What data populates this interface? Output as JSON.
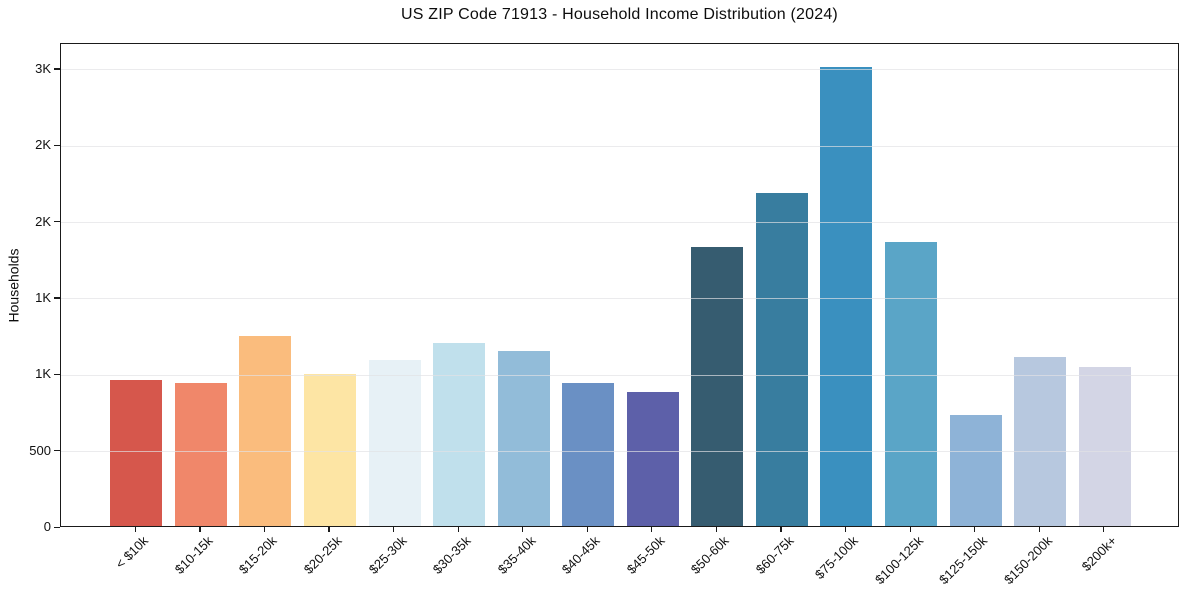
{
  "chart_data": {
    "type": "bar",
    "title": "US ZIP Code 71913 - Household Income Distribution (2024)",
    "xlabel": "",
    "ylabel": "Households",
    "categories": [
      "< $10k",
      "$10-15k",
      "$15-20k",
      "$20-25k",
      "$25-30k",
      "$30-35k",
      "$35-40k",
      "$40-45k",
      "$45-50k",
      "$50-60k",
      "$60-75k",
      "$75-100k",
      "$100-125k",
      "$125-150k",
      "$150-200k",
      "$200k+"
    ],
    "values": [
      955,
      935,
      1245,
      995,
      1085,
      1200,
      1145,
      935,
      875,
      1825,
      2180,
      3005,
      1860,
      730,
      1110,
      1040
    ],
    "bar_colors": [
      "#d6574c",
      "#f0876a",
      "#fabc7d",
      "#fde5a4",
      "#e7f1f6",
      "#c0e0ec",
      "#92bcd9",
      "#6a90c4",
      "#5d60a9",
      "#365c70",
      "#387d9f",
      "#3a90bf",
      "#5aa5c7",
      "#8eb3d7",
      "#b7c8df",
      "#d3d5e5"
    ],
    "ylim": [
      0,
      3170
    ],
    "yticks": [
      {
        "value": 0,
        "label": "0"
      },
      {
        "value": 500,
        "label": "500"
      },
      {
        "value": 1000,
        "label": "1K"
      },
      {
        "value": 1500,
        "label": "1K"
      },
      {
        "value": 2000,
        "label": "2K"
      },
      {
        "value": 2500,
        "label": "2K"
      },
      {
        "value": 3000,
        "label": "3K"
      }
    ],
    "grid": "horizontal gridlines at each y tick, drawn above bars",
    "legend": "none"
  }
}
